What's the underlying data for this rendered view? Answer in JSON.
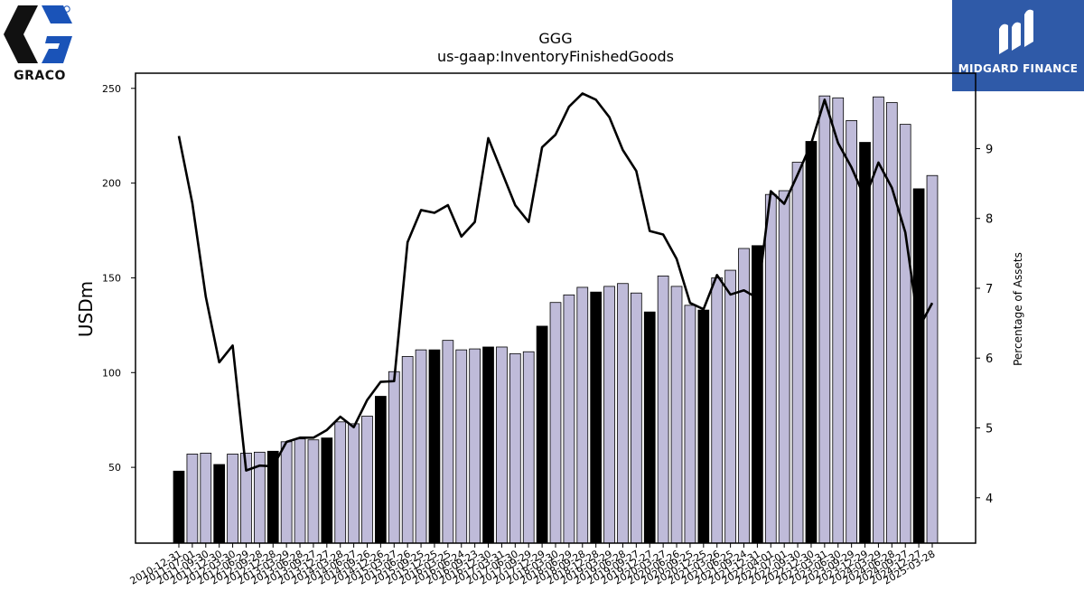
{
  "header": {
    "ticker": "GGG",
    "concept": "us-gaap:InventoryFinishedGoods"
  },
  "logos": {
    "left_brand": "GRACO",
    "right_brand": "MIDGARD FINANCE",
    "graco_blue": "#1a53b8",
    "midgard_bg": "#2f5aa8"
  },
  "colors": {
    "bar_fill": "#bfbbd9",
    "bar_highlight": "#000000",
    "line": "#000000"
  },
  "chart_data": {
    "type": "bar",
    "title": "GGG",
    "subtitle": "us-gaap:InventoryFinishedGoods",
    "ylabel": "USDm",
    "y2label": "Percentage of Assets",
    "ylim": [
      10,
      258
    ],
    "y2lim": [
      3.35,
      10.08
    ],
    "yticks": [
      50,
      100,
      150,
      200,
      250
    ],
    "y2ticks": [
      4,
      5,
      6,
      7,
      8,
      9
    ],
    "grid": false,
    "categories": [
      "2010-12-31",
      "2011-07-01",
      "2011-09-30",
      "2011-12-30",
      "2012-03-30",
      "2012-06-29",
      "2012-09-28",
      "2012-12-28",
      "2013-03-29",
      "2013-06-28",
      "2013-09-27",
      "2013-12-27",
      "2014-03-28",
      "2014-06-27",
      "2014-09-26",
      "2014-12-26",
      "2015-03-27",
      "2015-06-26",
      "2015-09-25",
      "2015-12-25",
      "2016-03-25",
      "2016-06-24",
      "2016-09-23",
      "2016-12-30",
      "2017-03-31",
      "2017-06-30",
      "2017-09-29",
      "2017-12-29",
      "2018-03-30",
      "2018-06-29",
      "2018-09-28",
      "2018-12-28",
      "2019-03-29",
      "2019-06-28",
      "2019-09-27",
      "2019-12-27",
      "2020-03-27",
      "2020-06-26",
      "2020-09-25",
      "2020-12-25",
      "2021-03-26",
      "2021-06-25",
      "2021-09-24",
      "2021-12-31",
      "2022-04-01",
      "2022-07-01",
      "2022-09-30",
      "2022-12-30",
      "2023-03-31",
      "2023-06-30",
      "2023-09-29",
      "2023-12-29",
      "2024-03-29",
      "2024-06-28",
      "2024-09-27",
      "2024-12-27",
      "2025-03-28"
    ],
    "series": [
      {
        "kind": "bar",
        "axis": "left",
        "values": [
          48,
          57,
          57.5,
          51.5,
          57,
          57.5,
          58,
          58.5,
          63.5,
          65,
          64.5,
          65.5,
          74,
          73,
          77,
          87.5,
          100.5,
          108.5,
          112,
          112,
          117,
          112,
          112.5,
          113.5,
          113.5,
          110,
          111,
          124.5,
          137,
          141,
          145,
          142.5,
          145.5,
          147,
          142,
          132,
          151,
          145.5,
          135.5,
          133,
          150,
          154,
          165.5,
          167,
          194,
          196,
          211,
          222,
          246,
          245,
          233,
          221.5,
          245.5,
          242.5,
          231,
          197,
          204
        ],
        "highlight": [
          true,
          false,
          false,
          true,
          false,
          false,
          false,
          true,
          false,
          false,
          false,
          true,
          false,
          false,
          false,
          true,
          false,
          false,
          false,
          true,
          false,
          false,
          false,
          true,
          false,
          false,
          false,
          true,
          false,
          false,
          false,
          true,
          false,
          false,
          false,
          true,
          false,
          false,
          false,
          true,
          false,
          false,
          false,
          true,
          false,
          false,
          false,
          true,
          false,
          false,
          false,
          true,
          false,
          false,
          false,
          true,
          false
        ]
      },
      {
        "kind": "line",
        "axis": "right",
        "values": [
          9.18,
          8.22,
          6.88,
          5.94,
          6.18,
          4.39,
          4.46,
          4.45,
          4.8,
          4.86,
          4.86,
          4.97,
          5.16,
          5.01,
          5.4,
          5.66,
          5.67,
          7.66,
          8.12,
          8.08,
          8.19,
          7.74,
          7.95,
          9.15,
          8.67,
          8.19,
          7.95,
          9.02,
          9.2,
          9.6,
          9.79,
          9.7,
          9.45,
          8.98,
          8.68,
          7.82,
          7.77,
          7.42,
          6.79,
          6.7,
          7.19,
          6.91,
          6.97,
          6.86,
          8.39,
          8.21,
          8.63,
          9.07,
          9.7,
          9.08,
          8.73,
          8.29,
          8.8,
          8.44,
          7.8,
          6.43,
          6.79
        ]
      }
    ]
  }
}
